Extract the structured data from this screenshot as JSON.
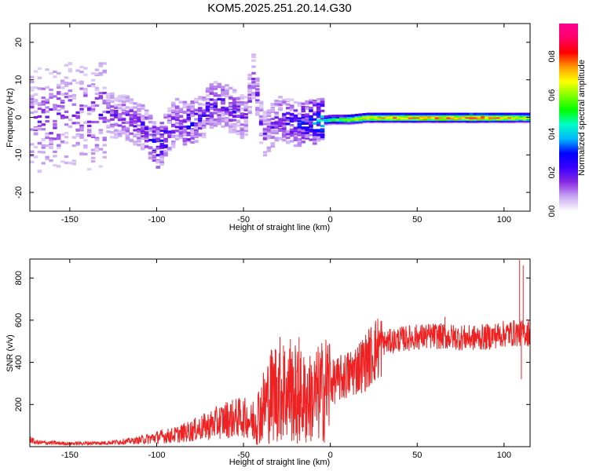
{
  "title": "KOM5.2025.251.20.14.G30",
  "chart_data": [
    {
      "type": "heatmap",
      "name": "spectrogram",
      "xlabel": "Height of straight line (km)",
      "ylabel": "Frequency (Hz)",
      "xlim": [
        -173,
        115
      ],
      "ylim": [
        -25,
        25
      ],
      "xticks": [
        -150,
        -100,
        -50,
        0,
        50,
        100
      ],
      "yticks": [
        -20,
        -10,
        0,
        10,
        20
      ],
      "colorbar": {
        "label": "Normalized spectral amplitude",
        "range": [
          0,
          0.97
        ],
        "ticks": [
          0.0,
          0.2,
          0.4,
          0.6,
          0.8
        ],
        "tick_labels": [
          "0.0",
          "0.2",
          "0.4",
          "0.6",
          "0.8"
        ],
        "colormap": [
          "#ffffff",
          "#c9a8f2",
          "#8a2be2",
          "#3a00ff",
          "#0000ff",
          "#00b7ff",
          "#00ffc8",
          "#00ff00",
          "#7fff00",
          "#ffff00",
          "#ff9900",
          "#ff0000",
          "#ff0066",
          "#ff0090"
        ]
      },
      "trace": [
        {
          "x": -170,
          "f": -1,
          "amp": 0.15
        },
        {
          "x": -160,
          "f": 0,
          "amp": 0.17
        },
        {
          "x": -150,
          "f": 1,
          "amp": 0.14
        },
        {
          "x": -140,
          "f": 0,
          "amp": 0.17
        },
        {
          "x": -130,
          "f": 1,
          "amp": 0.18
        },
        {
          "x": -120,
          "f": 0,
          "amp": 0.18
        },
        {
          "x": -110,
          "f": -2,
          "amp": 0.2
        },
        {
          "x": -100,
          "f": -8,
          "amp": 0.3
        },
        {
          "x": -90,
          "f": -1,
          "amp": 0.2
        },
        {
          "x": -83,
          "f": -2,
          "amp": 0.28
        },
        {
          "x": -75,
          "f": 0,
          "amp": 0.2
        },
        {
          "x": -70,
          "f": 3,
          "amp": 0.23
        },
        {
          "x": -65,
          "f": 4,
          "amp": 0.22
        },
        {
          "x": -55,
          "f": 1,
          "amp": 0.19
        },
        {
          "x": -50,
          "f": 0,
          "amp": 0.17
        },
        {
          "x": -45,
          "f": 12,
          "amp": 0.16
        },
        {
          "x": -40,
          "f": -5,
          "amp": 0.16
        },
        {
          "x": -30,
          "f": 0,
          "amp": 0.2
        },
        {
          "x": -20,
          "f": -2,
          "amp": 0.28
        },
        {
          "x": -10,
          "f": -1,
          "amp": 0.35
        },
        {
          "x": 0,
          "f": -0.5,
          "amp": 0.5
        },
        {
          "x": 10,
          "f": -0.5,
          "amp": 0.6
        },
        {
          "x": 20,
          "f": 0,
          "amp": 0.68
        },
        {
          "x": 30,
          "f": 0,
          "amp": 0.72
        },
        {
          "x": 40,
          "f": 0,
          "amp": 0.74
        },
        {
          "x": 50,
          "f": 0,
          "amp": 0.74
        },
        {
          "x": 60,
          "f": 0,
          "amp": 0.74
        },
        {
          "x": 70,
          "f": 0,
          "amp": 0.72
        },
        {
          "x": 80,
          "f": 0,
          "amp": 0.8
        },
        {
          "x": 90,
          "f": 0,
          "amp": 0.76
        },
        {
          "x": 100,
          "f": 0,
          "amp": 0.72
        },
        {
          "x": 110,
          "f": 0,
          "amp": 0.62
        }
      ]
    },
    {
      "type": "line",
      "name": "snr",
      "xlabel": "Height of straight line (km)",
      "ylabel": "SNR (v/v)",
      "xlim": [
        -173,
        115
      ],
      "ylim": [
        0,
        890
      ],
      "xticks": [
        -150,
        -100,
        -50,
        0,
        50,
        100
      ],
      "yticks": [
        200,
        400,
        600,
        800
      ],
      "color": "#ee2222",
      "envelope": [
        {
          "x": -173,
          "y": 40
        },
        {
          "x": -170,
          "y": 20
        },
        {
          "x": -150,
          "y": 15
        },
        {
          "x": -130,
          "y": 18
        },
        {
          "x": -110,
          "y": 30
        },
        {
          "x": -100,
          "y": 45
        },
        {
          "x": -90,
          "y": 55
        },
        {
          "x": -80,
          "y": 75
        },
        {
          "x": -70,
          "y": 100
        },
        {
          "x": -60,
          "y": 130
        },
        {
          "x": -50,
          "y": 140
        },
        {
          "x": -45,
          "y": 120
        },
        {
          "x": -40,
          "y": 170
        },
        {
          "x": -35,
          "y": 240
        },
        {
          "x": -30,
          "y": 280
        },
        {
          "x": -25,
          "y": 260
        },
        {
          "x": -20,
          "y": 250
        },
        {
          "x": -15,
          "y": 230
        },
        {
          "x": -10,
          "y": 230
        },
        {
          "x": -5,
          "y": 260
        },
        {
          "x": 0,
          "y": 300
        },
        {
          "x": 10,
          "y": 340
        },
        {
          "x": 20,
          "y": 400
        },
        {
          "x": 25,
          "y": 450
        },
        {
          "x": 30,
          "y": 490
        },
        {
          "x": 40,
          "y": 510
        },
        {
          "x": 50,
          "y": 520
        },
        {
          "x": 60,
          "y": 525
        },
        {
          "x": 70,
          "y": 520
        },
        {
          "x": 80,
          "y": 515
        },
        {
          "x": 90,
          "y": 520
        },
        {
          "x": 100,
          "y": 535
        },
        {
          "x": 108,
          "y": 540
        },
        {
          "x": 115,
          "y": 540
        }
      ],
      "spikes": [
        {
          "x": -27,
          "y": 480
        },
        {
          "x": -23,
          "y": 510
        },
        {
          "x": -18,
          "y": 520
        },
        {
          "x": -14,
          "y": 20
        },
        {
          "x": -19,
          "y": 15
        },
        {
          "x": 66,
          "y": 615
        },
        {
          "x": 109,
          "y": 885
        },
        {
          "x": 110,
          "y": 320
        },
        {
          "x": 111,
          "y": 860
        }
      ]
    }
  ]
}
